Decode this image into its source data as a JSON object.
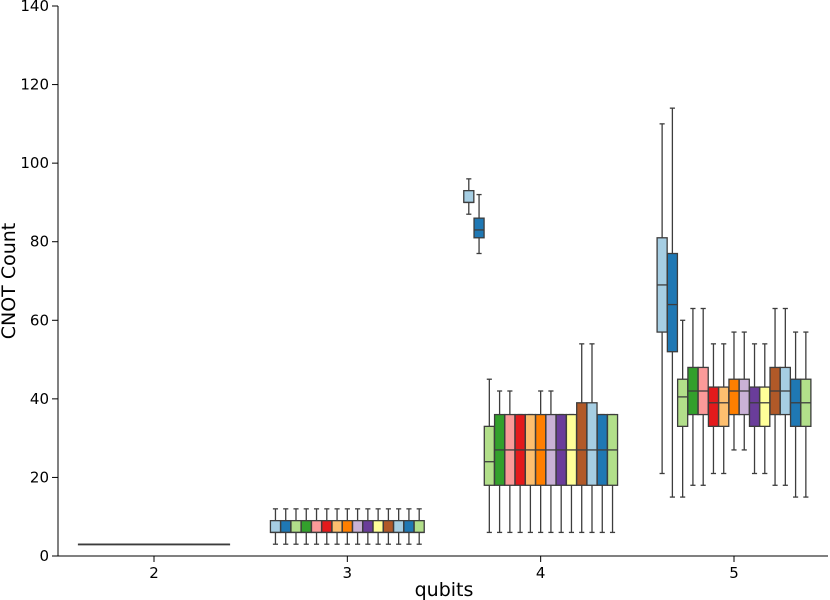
{
  "chart_data": {
    "type": "box",
    "xlabel": "qubits",
    "ylabel": "CNOT Count",
    "categories": [
      "2",
      "3",
      "4",
      "5"
    ],
    "ylim": [
      0,
      140
    ],
    "yticks": [
      0,
      20,
      40,
      60,
      80,
      100,
      120,
      140
    ],
    "grid": false,
    "legend": "none",
    "palette": [
      "#a6cee3",
      "#1f78b4",
      "#b2df8a",
      "#33a02c",
      "#fb9a99",
      "#e31a1c",
      "#fdbf6f",
      "#ff7f00",
      "#cab2d6",
      "#6a3d9a",
      "#ffff99",
      "#b15928"
    ],
    "groups": [
      {
        "category": "2",
        "boxes": [
          {
            "color": "#333333",
            "whislo": 3,
            "q1": 3,
            "med": 3,
            "q3": 3,
            "whishi": 3
          }
        ]
      },
      {
        "category": "3",
        "boxes": [
          {
            "color": "#a6cee3",
            "whislo": 3,
            "q1": 6,
            "med": 6,
            "q3": 9,
            "whishi": 12
          },
          {
            "color": "#1f78b4",
            "whislo": 3,
            "q1": 6,
            "med": 6,
            "q3": 9,
            "whishi": 12
          },
          {
            "color": "#b2df8a",
            "whislo": 3,
            "q1": 6,
            "med": 6,
            "q3": 9,
            "whishi": 12
          },
          {
            "color": "#33a02c",
            "whislo": 3,
            "q1": 6,
            "med": 6,
            "q3": 9,
            "whishi": 12
          },
          {
            "color": "#fb9a99",
            "whislo": 3,
            "q1": 6,
            "med": 6,
            "q3": 9,
            "whishi": 12
          },
          {
            "color": "#e31a1c",
            "whislo": 3,
            "q1": 6,
            "med": 6,
            "q3": 9,
            "whishi": 12
          },
          {
            "color": "#fdbf6f",
            "whislo": 3,
            "q1": 6,
            "med": 6,
            "q3": 9,
            "whishi": 12
          },
          {
            "color": "#ff7f00",
            "whislo": 3,
            "q1": 6,
            "med": 6,
            "q3": 9,
            "whishi": 12
          },
          {
            "color": "#cab2d6",
            "whislo": 3,
            "q1": 6,
            "med": 6,
            "q3": 9,
            "whishi": 12
          },
          {
            "color": "#6a3d9a",
            "whislo": 3,
            "q1": 6,
            "med": 6,
            "q3": 9,
            "whishi": 12
          },
          {
            "color": "#ffff99",
            "whislo": 3,
            "q1": 6,
            "med": 6,
            "q3": 9,
            "whishi": 12
          },
          {
            "color": "#b15928",
            "whislo": 3,
            "q1": 6,
            "med": 6,
            "q3": 9,
            "whishi": 12
          },
          {
            "color": "#a6cee3",
            "whislo": 3,
            "q1": 6,
            "med": 6,
            "q3": 9,
            "whishi": 12
          },
          {
            "color": "#1f78b4",
            "whislo": 3,
            "q1": 6,
            "med": 6,
            "q3": 9,
            "whishi": 12
          },
          {
            "color": "#b2df8a",
            "whislo": 3,
            "q1": 6,
            "med": 6,
            "q3": 9,
            "whishi": 12
          }
        ]
      },
      {
        "category": "4",
        "boxes": [
          {
            "color": "#a6cee3",
            "whislo": 87,
            "q1": 90,
            "med": 90,
            "q3": 93,
            "whishi": 96
          },
          {
            "color": "#1f78b4",
            "whislo": 77,
            "q1": 81,
            "med": 83,
            "q3": 86,
            "whishi": 92
          },
          {
            "color": "#b2df8a",
            "whislo": 6,
            "q1": 18,
            "med": 24,
            "q3": 33,
            "whishi": 45
          },
          {
            "color": "#33a02c",
            "whislo": 6,
            "q1": 18,
            "med": 27,
            "q3": 36,
            "whishi": 42
          },
          {
            "color": "#fb9a99",
            "whislo": 6,
            "q1": 18,
            "med": 27,
            "q3": 36,
            "whishi": 42
          },
          {
            "color": "#e31a1c",
            "whislo": 6,
            "q1": 18,
            "med": 27,
            "q3": 36,
            "whishi": 36
          },
          {
            "color": "#fdbf6f",
            "whislo": 6,
            "q1": 18,
            "med": 27,
            "q3": 36,
            "whishi": 36
          },
          {
            "color": "#ff7f00",
            "whislo": 6,
            "q1": 18,
            "med": 27,
            "q3": 36,
            "whishi": 42
          },
          {
            "color": "#cab2d6",
            "whislo": 6,
            "q1": 18,
            "med": 27,
            "q3": 36,
            "whishi": 42
          },
          {
            "color": "#6a3d9a",
            "whislo": 6,
            "q1": 18,
            "med": 27,
            "q3": 36,
            "whishi": 36
          },
          {
            "color": "#ffff99",
            "whislo": 6,
            "q1": 18,
            "med": 27,
            "q3": 36,
            "whishi": 36
          },
          {
            "color": "#b15928",
            "whislo": 6,
            "q1": 18,
            "med": 27,
            "q3": 39,
            "whishi": 54
          },
          {
            "color": "#a6cee3",
            "whislo": 6,
            "q1": 18,
            "med": 27,
            "q3": 39,
            "whishi": 54
          },
          {
            "color": "#1f78b4",
            "whislo": 6,
            "q1": 18,
            "med": 27,
            "q3": 36,
            "whishi": 36
          },
          {
            "color": "#b2df8a",
            "whislo": 6,
            "q1": 18,
            "med": 27,
            "q3": 36,
            "whishi": 36
          }
        ]
      },
      {
        "category": "5",
        "boxes": [
          {
            "color": "#a6cee3",
            "whislo": 21,
            "q1": 57,
            "med": 69,
            "q3": 81,
            "whishi": 110
          },
          {
            "color": "#1f78b4",
            "whislo": 15,
            "q1": 52,
            "med": 64,
            "q3": 77,
            "whishi": 114
          },
          {
            "color": "#b2df8a",
            "whislo": 15,
            "q1": 33,
            "med": 40.5,
            "q3": 45,
            "whishi": 60
          },
          {
            "color": "#33a02c",
            "whislo": 18,
            "q1": 36,
            "med": 42,
            "q3": 48,
            "whishi": 63
          },
          {
            "color": "#fb9a99",
            "whislo": 18,
            "q1": 36,
            "med": 42,
            "q3": 48,
            "whishi": 63
          },
          {
            "color": "#e31a1c",
            "whislo": 21,
            "q1": 33,
            "med": 39,
            "q3": 43,
            "whishi": 54
          },
          {
            "color": "#fdbf6f",
            "whislo": 21,
            "q1": 33,
            "med": 39,
            "q3": 43,
            "whishi": 54
          },
          {
            "color": "#ff7f00",
            "whislo": 27,
            "q1": 36,
            "med": 42,
            "q3": 45,
            "whishi": 57
          },
          {
            "color": "#cab2d6",
            "whislo": 27,
            "q1": 36,
            "med": 42,
            "q3": 45,
            "whishi": 57
          },
          {
            "color": "#6a3d9a",
            "whislo": 21,
            "q1": 33,
            "med": 39,
            "q3": 43,
            "whishi": 54
          },
          {
            "color": "#ffff99",
            "whislo": 21,
            "q1": 33,
            "med": 39,
            "q3": 43,
            "whishi": 54
          },
          {
            "color": "#b15928",
            "whislo": 18,
            "q1": 36,
            "med": 42,
            "q3": 48,
            "whishi": 63
          },
          {
            "color": "#a6cee3",
            "whislo": 18,
            "q1": 36,
            "med": 42,
            "q3": 48,
            "whishi": 63
          },
          {
            "color": "#1f78b4",
            "whislo": 15,
            "q1": 33,
            "med": 39,
            "q3": 45,
            "whishi": 57
          },
          {
            "color": "#b2df8a",
            "whislo": 15,
            "q1": 33,
            "med": 39,
            "q3": 45,
            "whishi": 57
          }
        ]
      }
    ]
  }
}
